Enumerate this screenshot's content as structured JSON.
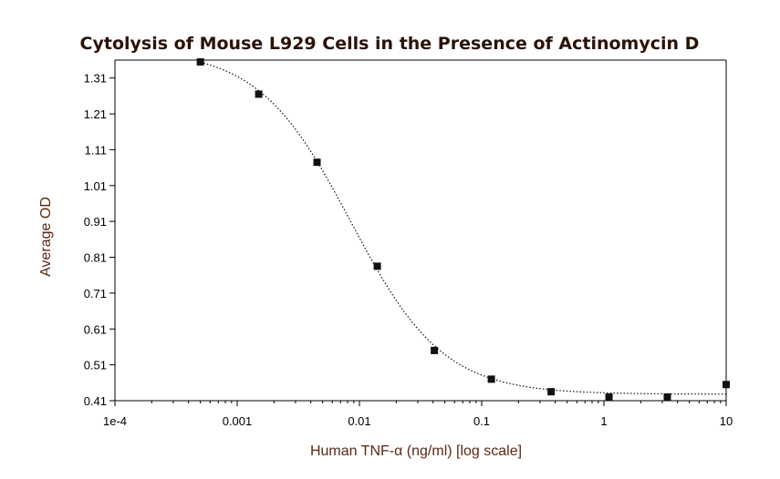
{
  "chart_data": {
    "type": "scatter",
    "title": "Cytolysis of Mouse L929 Cells in the Presence of Actinomycin D",
    "xlabel": "Human TNF-α (ng/ml) [log scale]",
    "ylabel": "Average OD",
    "x_scale": "log",
    "xlim": [
      0.0001,
      10
    ],
    "ylim": [
      0.41,
      1.36
    ],
    "grid": false,
    "x_ticks": [
      {
        "value": 0.0001,
        "label": "1e-4"
      },
      {
        "value": 0.001,
        "label": "0.001"
      },
      {
        "value": 0.01,
        "label": "0.01"
      },
      {
        "value": 0.1,
        "label": "0.1"
      },
      {
        "value": 1,
        "label": "1"
      },
      {
        "value": 10,
        "label": "10"
      }
    ],
    "y_ticks": [
      {
        "value": 0.41,
        "label": "0.41"
      },
      {
        "value": 0.51,
        "label": "0.51"
      },
      {
        "value": 0.61,
        "label": "0.61"
      },
      {
        "value": 0.71,
        "label": "0.71"
      },
      {
        "value": 0.81,
        "label": "0.81"
      },
      {
        "value": 0.91,
        "label": "0.91"
      },
      {
        "value": 1.01,
        "label": "1.01"
      },
      {
        "value": 1.11,
        "label": "1.11"
      },
      {
        "value": 1.21,
        "label": "1.21"
      },
      {
        "value": 1.31,
        "label": "1.31"
      }
    ],
    "points": [
      {
        "x": 0.0005,
        "y": 1.355
      },
      {
        "x": 0.0015,
        "y": 1.265
      },
      {
        "x": 0.0045,
        "y": 1.075
      },
      {
        "x": 0.014,
        "y": 0.785
      },
      {
        "x": 0.041,
        "y": 0.55
      },
      {
        "x": 0.12,
        "y": 0.47
      },
      {
        "x": 0.37,
        "y": 0.435
      },
      {
        "x": 1.1,
        "y": 0.42
      },
      {
        "x": 3.3,
        "y": 0.42
      },
      {
        "x": 10,
        "y": 0.455
      }
    ],
    "fit_curve": {
      "type": "4PL",
      "top": 1.39,
      "bottom": 0.428,
      "ec50": 0.0085,
      "hill": 1.15
    },
    "colors": {
      "marker": "#111111",
      "curve": "#111111",
      "title": "#2b1207",
      "axis_label": "#5a2a12"
    }
  }
}
